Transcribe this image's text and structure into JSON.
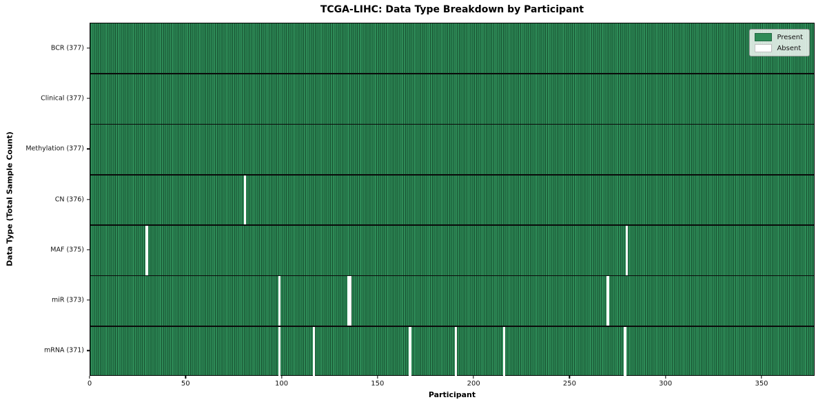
{
  "chart_data": {
    "type": "heatmap",
    "title": "TCGA-LIHC: Data Type Breakdown by Participant",
    "xlabel": "Participant",
    "ylabel": "Data Type (Total Sample Count)",
    "x_ticks": [
      0,
      50,
      100,
      150,
      200,
      250,
      300,
      350
    ],
    "n_participants": 377,
    "rows": [
      {
        "label": "BCR (377)",
        "count": 377,
        "absent": []
      },
      {
        "label": "Clinical (377)",
        "count": 377,
        "absent": []
      },
      {
        "label": "Methylation (377)",
        "count": 377,
        "absent": []
      },
      {
        "label": "CN (376)",
        "count": 376,
        "absent": [
          80
        ]
      },
      {
        "label": "MAF (375)",
        "count": 375,
        "absent": [
          29,
          279
        ]
      },
      {
        "label": "miR (373)",
        "count": 373,
        "absent": [
          98,
          134,
          135,
          269
        ]
      },
      {
        "label": "mRNA (371)",
        "count": 371,
        "absent": [
          98,
          116,
          166,
          190,
          215,
          278
        ]
      }
    ],
    "legend": {
      "position": "upper-right",
      "entries": [
        {
          "label": "Present",
          "color": "#2e8b57"
        },
        {
          "label": "Absent",
          "color": "#ffffff"
        }
      ]
    },
    "colors": {
      "present": "#2e8b57",
      "cell_edge": "#175030",
      "row_divider": "#0a0a0a",
      "absent": "#ffffff",
      "frame": "#000000"
    }
  }
}
